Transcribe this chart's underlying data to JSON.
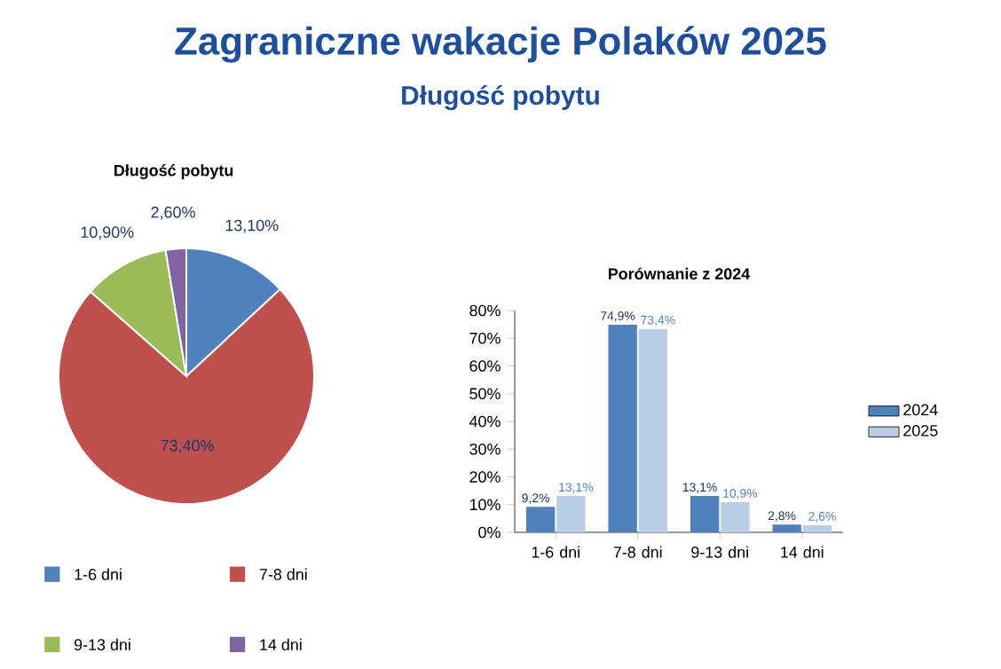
{
  "chart_data": [
    {
      "type": "pie",
      "title": "Zagraniczne wakacje Polaków 2025",
      "subtitle": "Długość pobytu",
      "annotations": [
        "Długość pobytu"
      ],
      "categories": [
        "1-6 dni",
        "7-8 dni",
        "9-13 dni",
        "14 dni"
      ],
      "values": [
        13.1,
        73.4,
        10.9,
        2.6
      ],
      "value_labels": [
        "13,10%",
        "73,40%",
        "10,90%",
        "2,60%"
      ],
      "colors": [
        "#4f81bd",
        "#c0504d",
        "#9bbb59",
        "#8064a2"
      ],
      "legend": "bottom"
    },
    {
      "type": "bar",
      "title": "Porównanie z 2024",
      "categories": [
        "1-6 dni",
        "7-8 dni",
        "9-13 dni",
        "14 dni"
      ],
      "series": [
        {
          "name": "2024",
          "color": "#4f81bd",
          "values": [
            9.2,
            74.9,
            13.1,
            2.8
          ],
          "value_labels": [
            "9,2%",
            "74,9%",
            "13,1%",
            "2,8%"
          ]
        },
        {
          "name": "2025",
          "color": "#b9cde5",
          "values": [
            13.1,
            73.4,
            10.9,
            2.6
          ],
          "value_labels": [
            "13,1%",
            "73,4%",
            "10,9%",
            "2,6%"
          ]
        }
      ],
      "ylim": [
        0,
        80
      ],
      "yticks": [
        {
          "value": 0,
          "label": "0%"
        },
        {
          "value": 10,
          "label": "10%"
        },
        {
          "value": 20,
          "label": "20%"
        },
        {
          "value": 30,
          "label": "30%"
        },
        {
          "value": 40,
          "label": "40%"
        },
        {
          "value": 50,
          "label": "50%"
        },
        {
          "value": 60,
          "label": "60%"
        },
        {
          "value": 70,
          "label": "70%"
        },
        {
          "value": 80,
          "label": "80%"
        }
      ],
      "legend": "right"
    }
  ]
}
